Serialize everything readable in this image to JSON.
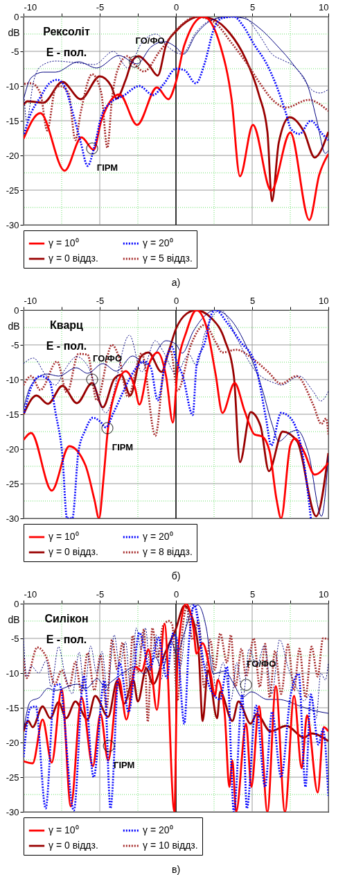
{
  "chart_data": [
    {
      "type": "line",
      "title": "а)",
      "ylabel": "dB",
      "xlim": [
        -10,
        10
      ],
      "ylim": [
        -30,
        0
      ],
      "xticks": [
        -10,
        {
          "value": -7.5,
          "label": null
        },
        -5,
        {
          "value": -2.5,
          "label": null
        },
        0,
        {
          "value": 2.5,
          "label": null
        },
        5,
        {
          "value": 7.5,
          "label": null
        },
        10
      ],
      "yticks": [
        0,
        {
          "value": -2.5,
          "label": null
        },
        -5,
        {
          "value": -7.5,
          "label": null
        },
        -10,
        {
          "value": -12.5,
          "label": null
        },
        -15,
        {
          "value": -17.5,
          "label": null
        },
        -20,
        {
          "value": -22.5,
          "label": null
        },
        -25,
        {
          "value": -27.5,
          "label": null
        },
        -30
      ],
      "grid": true,
      "legend": "bottom",
      "ref_lines": [
        {
          "axis": "x",
          "value": 0,
          "color": "#000000"
        }
      ],
      "annotations": [
        "Рексоліт",
        "E - пол.",
        {
          "text": "ГО/ФО",
          "x": -2.7,
          "y": -6.5
        },
        {
          "text": "ГІРМ",
          "x": -5.5,
          "y": -19
        }
      ],
      "series": [
        {
          "name": "γ = 10⁰",
          "color": "#ff0000",
          "line_style": "solid",
          "x": [
            -10,
            -8.9,
            -7.3,
            -6.2,
            -5.4,
            -4.9,
            -3.7,
            -2.55,
            -1.25,
            -0.5,
            0,
            0.55,
            1.8,
            2.9,
            3.65,
            4.2,
            5.05,
            6.25,
            7.5,
            8.75,
            9.4,
            10
          ],
          "values": [
            -17.6,
            -13.9,
            -22.2,
            -17.4,
            -19.2,
            -15,
            -11.2,
            -15.6,
            -10.2,
            -11.9,
            -9.4,
            -4.1,
            0,
            -4.1,
            -11.9,
            -23,
            -15.6,
            -25.1,
            -16.7,
            -29.3,
            -22.8,
            -19.8
          ]
        },
        {
          "name": "γ = 20⁰",
          "color": "#0000ff",
          "line_style": "dotted",
          "x": [
            -9.95,
            -9.65,
            -8.9,
            -8.3,
            -7.8,
            -7.4,
            -6.7,
            -6.25,
            -5.8,
            -5.35,
            -4.9,
            -4.35,
            -3.45,
            -2.4,
            -1.5,
            -0.8,
            0,
            0.55,
            1.3,
            1.9,
            2.45,
            3.05,
            3.8,
            4.4,
            5.15,
            5.9,
            6.6,
            7.2,
            7.55,
            8.1,
            8.85,
            9.6,
            10
          ],
          "values": [
            -16.9,
            -14.7,
            -11.6,
            -9.6,
            -9.1,
            -9.7,
            -14.4,
            -18.1,
            -21.5,
            -18.7,
            -14.4,
            -12.5,
            -11.4,
            -10,
            -11.3,
            -9.7,
            -7.5,
            -7.7,
            -9.6,
            -6.6,
            -2,
            -0.2,
            0,
            -1.3,
            -4.1,
            -6.6,
            -10,
            -13.8,
            -16.2,
            -16.9,
            -15,
            -16.9,
            -17.8
          ]
        },
        {
          "name": "γ = 0 віддз.",
          "color": "#990000",
          "line_style": "solid",
          "x": [
            -10,
            -9.75,
            -8.7,
            -7.45,
            -6.25,
            -5,
            -4.25,
            -3.9,
            -3.3,
            -2.85,
            -2.45,
            -1.8,
            -1.2,
            -0.65,
            0,
            0.7,
            1.45,
            2.45,
            3.5,
            4.55,
            5.45,
            6,
            6.3,
            6.75,
            7.45,
            8.4,
            9.1,
            10
          ],
          "values": [
            -12.7,
            -12.2,
            -12.4,
            -9.4,
            -11.9,
            -8.6,
            -10,
            -11.8,
            -9.1,
            -6.3,
            -5.7,
            -6.9,
            -8.5,
            -4.1,
            -2.1,
            -0.7,
            0,
            -0.4,
            -2.3,
            -6,
            -11.3,
            -16.6,
            -26.6,
            -18.1,
            -14.5,
            -16.6,
            -20.3,
            -16.6
          ]
        },
        {
          "name": "γ = 5 віддз.",
          "color": "#a52a2a",
          "line_style": "dotted",
          "x": [
            -9.95,
            -9.5,
            -8.9,
            -8.45,
            -7.9,
            -7.6,
            -7.05,
            -6.6,
            -6.25,
            -5.5,
            -4.9,
            -4.5,
            -4.2,
            -3.75,
            -3.2,
            -2.7,
            -2.1,
            -1.1,
            0,
            1,
            1.3,
            2.45,
            3.65,
            4.7,
            5.45,
            6.3,
            7.2,
            8.7,
            10
          ],
          "values": [
            -9.7,
            -9.6,
            -11,
            -16.4,
            -10.3,
            -10,
            -11,
            -17.8,
            -13.8,
            -8.3,
            -11,
            -18.9,
            -11.9,
            -7.2,
            -5.7,
            -6.9,
            -7.9,
            -5.1,
            -2,
            -0.2,
            0,
            -0.7,
            -3.8,
            -6.9,
            -9.4,
            -11.9,
            -13.1,
            -12,
            -13.6
          ]
        },
        {
          "color": "#000080",
          "line_style": "solid",
          "x": [
            -10,
            -9.5,
            -8.7,
            -7.9,
            -6.4,
            -5.2,
            -3.75,
            -2.55,
            -1.65,
            -0.8,
            0,
            0.5,
            1.3,
            2.45,
            3.35,
            4.4,
            5.45,
            6.6,
            7.8,
            8.7,
            9.25,
            9.8,
            10
          ],
          "values": [
            -11.9,
            -8.8,
            -8,
            -8,
            -6.5,
            -7.4,
            -5.6,
            -6.8,
            -4.4,
            -3.6,
            -4.4,
            -5.4,
            -2.6,
            -0.4,
            0,
            -0.2,
            -1.6,
            -4.1,
            -7.2,
            -10.3,
            -15,
            -19.7,
            -19.3
          ]
        },
        {
          "color": "#000080",
          "line_style": "dotted",
          "x": [
            -9.95,
            -9.8,
            -9.35,
            -8.9,
            -7.9,
            -6.7,
            -5.35,
            -4.1,
            -3.15,
            -2.25,
            -1.3,
            -0.5,
            0.4,
            1.3,
            2.45,
            4.4,
            5.45,
            6.3,
            7.05,
            7.8,
            9,
            9.45,
            10
          ],
          "values": [
            -11.9,
            -15,
            -9.4,
            -7.2,
            -6.4,
            -6.6,
            -6.9,
            -5,
            -7.4,
            -3.8,
            -2.5,
            -4.4,
            -5.4,
            -2.3,
            -0.4,
            0,
            -2.6,
            -5.4,
            -6.3,
            -7.2,
            -10.7,
            -11,
            -10.5
          ]
        }
      ]
    },
    {
      "type": "line",
      "title": "б)",
      "ylabel": "dB",
      "xlim": [
        -10,
        10
      ],
      "ylim": [
        -30,
        0
      ],
      "xticks": [
        -10,
        {
          "value": -7.5,
          "label": null
        },
        -5,
        {
          "value": -2.5,
          "label": null
        },
        0,
        {
          "value": 2.5,
          "label": null
        },
        5,
        {
          "value": 7.5,
          "label": null
        },
        10
      ],
      "yticks": [
        0,
        {
          "value": -2.5,
          "label": null
        },
        -5,
        {
          "value": -7.5,
          "label": null
        },
        -10,
        {
          "value": -12.5,
          "label": null
        },
        -15,
        {
          "value": -17.5,
          "label": null
        },
        -20,
        {
          "value": -22.5,
          "label": null
        },
        -25,
        {
          "value": -27.5,
          "label": null
        },
        -30
      ],
      "grid": true,
      "legend": "bottom",
      "ref_lines": [
        {
          "axis": "x",
          "value": 0,
          "color": "#000000"
        }
      ],
      "annotations": [
        "Кварц",
        "E - пол.",
        {
          "text": "ГО/ФО",
          "x": -5.5,
          "y": -10
        },
        {
          "text": "ГІРМ",
          "x": -4.5,
          "y": -17
        }
      ],
      "series": [
        {
          "name": "γ = 10⁰",
          "color": "#ff0000",
          "line_style": "solid",
          "x": [
            -10,
            -9.5,
            -8.15,
            -7,
            -5.95,
            -5.35,
            -5.05,
            -4.75,
            -4.5,
            -3.9,
            -3.3,
            -2.7,
            -2.4,
            -1.8,
            -1.2,
            -0.65,
            -0.2,
            0.1,
            0.7,
            1.35,
            2,
            2.6,
            3.05,
            3.85,
            4.5,
            5.15,
            5.65,
            6.15,
            6.6,
            6.9,
            7.5,
            7.8,
            8.4,
            9.1,
            10
          ],
          "values": [
            -18.7,
            -17.7,
            -26,
            -19.6,
            -22.3,
            -27.3,
            -30,
            -24.2,
            -17.9,
            -11.1,
            -8.8,
            -11.1,
            -13.6,
            -8,
            -6.1,
            -9.5,
            -16.2,
            -8.6,
            -3,
            0,
            -2.4,
            -9.2,
            -14.8,
            -10.5,
            -14.5,
            -17.9,
            -18.2,
            -20.4,
            -27.3,
            -30,
            -19.5,
            -18.5,
            -20.4,
            -23.7,
            -22
          ]
        },
        {
          "name": "γ = 20⁰",
          "color": "#0000ff",
          "line_style": "dotted",
          "x": [
            -9.95,
            -9.5,
            -8.9,
            -8.3,
            -7.9,
            -7.45,
            -7.15,
            -6.8,
            -6.4,
            -5.95,
            -5.45,
            -4.95,
            -4.6,
            -4.1,
            -3.45,
            -2.7,
            -2.1,
            -1.65,
            -1.2,
            -0.65,
            -0.25,
            0,
            0.45,
            1.1,
            1.35,
            1.9,
            2.35,
            2.6,
            3.35,
            4.25,
            5.15,
            5.9,
            6.25,
            6.9,
            7.5,
            8.4,
            8.85
          ],
          "values": [
            -14.8,
            -11.1,
            -9.5,
            -10.2,
            -14.8,
            -21,
            -30,
            -30,
            -20.4,
            -17.3,
            -15.5,
            -16.1,
            -16.9,
            -14.8,
            -11.7,
            -8.6,
            -7.4,
            -8.3,
            -13,
            -7.1,
            -5.3,
            -7.1,
            -9.5,
            -15.1,
            -8,
            -4.6,
            -0.5,
            0,
            -1.8,
            -4.6,
            -7.4,
            -15.5,
            -19.5,
            -14.8,
            -15.5,
            -22,
            -30
          ]
        },
        {
          "name": "γ = 0 віддз.",
          "color": "#990000",
          "line_style": "solid",
          "x": [
            -10,
            -9.15,
            -8.4,
            -7.45,
            -6.5,
            -5.5,
            -4.8,
            -4.05,
            -3.6,
            -3,
            -2.3,
            -1.8,
            -0.95,
            -0.5,
            0,
            0.7,
            1.3,
            2.35,
            3.2,
            3.8,
            4.2,
            4.9,
            5.55,
            6.1,
            7,
            7.95,
            9.2,
            10
          ],
          "values": [
            -15,
            -12.3,
            -13.5,
            -10.9,
            -13.4,
            -10.5,
            -14,
            -9.9,
            -9.3,
            -12.3,
            -6.7,
            -6.1,
            -8.9,
            -6.1,
            -2.7,
            -0.5,
            0,
            -1.2,
            -4.3,
            -9.5,
            -21.9,
            -14.7,
            -16.7,
            -23.2,
            -17.5,
            -18.9,
            -29.7,
            -20.6
          ]
        },
        {
          "name": "γ = 8 віддз.",
          "color": "#a52a2a",
          "line_style": "dotted",
          "x": [
            -10,
            -9.5,
            -8.9,
            -7.8,
            -7.15,
            -6.4,
            -5.8,
            -5.2,
            -4.2,
            -3.75,
            -3.15,
            -2.25,
            -1.35,
            -0.8,
            -0.35,
            0.1,
            1,
            1.9,
            2.6,
            3.05,
            3.95,
            5.15,
            6.05,
            6.9,
            7.9,
            9,
            9.55,
            9.85,
            10
          ],
          "values": [
            -10.8,
            -9.5,
            -11.5,
            -7.4,
            -11.9,
            -6.3,
            -6.4,
            -13,
            -5,
            -6.7,
            -12.5,
            -6.2,
            -18.1,
            -8.6,
            -5.8,
            -11.6,
            -4.9,
            -2.1,
            -4.6,
            -6.1,
            -5.7,
            -7.2,
            -8.9,
            -10.6,
            -9.5,
            -13.6,
            -16.4,
            -15.6,
            -17.9
          ]
        },
        {
          "color": "#000080",
          "line_style": "solid",
          "x": [
            -10,
            -9.5,
            -8.45,
            -7.7,
            -6.55,
            -5.8,
            -4.8,
            -3.9,
            -2.85,
            -1.95,
            -0.65,
            0,
            0.4,
            1.15,
            1.9,
            2.55,
            3.65,
            4.85,
            5.7,
            6.3,
            6.75,
            7.5,
            7.95,
            8.7,
            9.55,
            10
          ],
          "values": [
            -14.2,
            -10.8,
            -9.2,
            -9.5,
            -8.3,
            -9.1,
            -7.7,
            -8.8,
            -6.6,
            -7.8,
            -4.4,
            -4.9,
            -6.2,
            -3,
            -0.8,
            0,
            -1.5,
            -6.4,
            -11.7,
            -16.4,
            -18.9,
            -17.6,
            -17.3,
            -20.7,
            -29.7,
            -21
          ]
        },
        {
          "color": "#000080",
          "line_style": "dotted",
          "x": [
            -10,
            -9.35,
            -8.6,
            -7.9,
            -7.3,
            -6.5,
            -5.8,
            -4.6,
            -3.05,
            -2.25,
            -1.35,
            -0.8,
            0,
            0.85,
            1.35,
            1.9,
            2.95,
            3.95,
            5.15,
            6.6,
            6.9,
            8.1,
            9,
            9.5,
            10
          ],
          "values": [
            -7.7,
            -6.9,
            -9.2,
            -10.8,
            -8.6,
            -6.7,
            -8,
            -14.8,
            -3.6,
            -8.9,
            -4.4,
            -6.1,
            -9.2,
            -6.4,
            -8,
            -3.3,
            0,
            -3.9,
            -8.6,
            -10.6,
            -10.8,
            -9.5,
            -11.7,
            -13.1,
            -11.7
          ]
        }
      ]
    },
    {
      "type": "line",
      "title": "в)",
      "ylabel": "dB",
      "xlim": [
        -10,
        10
      ],
      "ylim": [
        -30,
        0
      ],
      "xticks": [
        -10,
        {
          "value": -7.5,
          "label": null
        },
        -5,
        {
          "value": -2.5,
          "label": null
        },
        0,
        {
          "value": 2.5,
          "label": null
        },
        5,
        {
          "value": 7.5,
          "label": null
        },
        10
      ],
      "yticks": [
        0,
        {
          "value": -2.5,
          "label": null
        },
        -5,
        {
          "value": -7.5,
          "label": null
        },
        -10,
        {
          "value": -12.5,
          "label": null
        },
        -15,
        {
          "value": -17.5,
          "label": null
        },
        -20,
        {
          "value": -22.5,
          "label": null
        },
        -25,
        {
          "value": -27.5,
          "label": null
        },
        -30
      ],
      "grid": true,
      "legend": "bottom",
      "ref_lines": [
        {
          "axis": "x",
          "value": 0,
          "color": "#000000"
        }
      ],
      "annotations": [
        "Силікон",
        "E - пол.",
        {
          "text": "ГО/ФО",
          "x": 4.6,
          "y": -11.7
        },
        {
          "text": "ГІРМ",
          "x": -4.4,
          "y": -20.5
        }
      ],
      "series": [
        {
          "name": "γ = 10⁰",
          "color": "#ff0000",
          "line_style": "solid",
          "x": [
            -10,
            -9.4,
            -8.75,
            -8.15,
            -7.5,
            -6.9,
            -6.2,
            -5.45,
            -4.95,
            -4.45,
            -3.75,
            -3.25,
            -2.65,
            -2.25,
            -1.8,
            -1.25,
            -0.75,
            -0.1,
            0.1,
            0.65,
            1.15,
            1.35,
            1.75,
            2.3,
            2.55,
            2.75,
            3.2,
            3.5,
            3.7,
            3.95,
            4.6,
            4.95,
            5.45,
            6,
            6.55,
            7.15,
            7.75,
            8.25,
            8.6,
            9.3,
            9.7,
            10
          ],
          "values": [
            -22.7,
            -23,
            -16.7,
            -22.9,
            -12.4,
            -29.2,
            -13.5,
            -23.4,
            -15.9,
            -22.6,
            -10.8,
            -16.7,
            -9.1,
            -9.7,
            -6.6,
            -15.3,
            -2.9,
            -30,
            -7.9,
            0,
            -3.6,
            -7.2,
            -5.7,
            -10.4,
            -13.3,
            -11,
            -15.9,
            -26.4,
            -22.6,
            -30,
            -17.3,
            -26.4,
            -14.8,
            -30,
            -11.9,
            -30,
            -13.3,
            -23.7,
            -16.1,
            -27.2,
            -17.8,
            -18.4
          ]
        },
        {
          "name": "γ = 20⁰",
          "color": "#0000ff",
          "line_style": "dotted",
          "x": [
            -10,
            -9.55,
            -9.2,
            -8.55,
            -7.95,
            -7.65,
            -6.7,
            -6.05,
            -5.4,
            -4.7,
            -4.3,
            -3.7,
            -3.1,
            -2.4,
            -1.7,
            -1.15,
            -0.6,
            -0.2,
            0.05,
            0.55,
            0.85,
            1.2,
            1.75,
            2.3,
            2.9,
            3.35,
            3.8,
            4.35,
            4.65,
            5.25,
            5.85,
            6.3,
            6.9,
            7.5,
            8.05,
            8.5,
            8.85,
            9.35,
            9.65,
            10
          ],
          "values": [
            -22.1,
            -15,
            -14.8,
            -29.5,
            -11.9,
            -11.6,
            -29.8,
            -10.4,
            -25,
            -11.1,
            -29.5,
            -8.5,
            -15.6,
            -4.2,
            -9.4,
            -4.9,
            -10.7,
            -4.3,
            -5.1,
            -17.3,
            -5.7,
            -0.2,
            -7.9,
            -12.5,
            -13.8,
            -9.1,
            -30,
            -13.1,
            -29.5,
            -14.7,
            -26.4,
            -15.6,
            -25,
            -13.5,
            -10.1,
            -26.4,
            -13.1,
            -20.3,
            -18.1,
            -27.7
          ]
        },
        {
          "name": "γ = 0 віддз.",
          "color": "#990000",
          "line_style": "solid",
          "x": [
            -10,
            -9.7,
            -9.4,
            -8.75,
            -8.25,
            -7.7,
            -7.2,
            -6.6,
            -5.8,
            -5.3,
            -4.45,
            -3.85,
            -3.4,
            -2.8,
            -2.5,
            -1.95,
            -1.5,
            -0.75,
            0,
            0.55,
            1.15,
            1.5,
            1.75,
            2.1,
            2.7,
            2.9,
            3.7,
            4.1,
            4.9,
            5.3,
            6.2,
            7.25,
            8.4,
            8.9,
            10
          ],
          "values": [
            -18.4,
            -16.9,
            -17.8,
            -14.8,
            -16.5,
            -14.2,
            -16.5,
            -14.1,
            -16.7,
            -13.3,
            -16.3,
            -11.1,
            -14.4,
            -11,
            -14.1,
            -9.3,
            -11.6,
            -7.3,
            -3.6,
            -0.3,
            -2.6,
            -7.3,
            -16.9,
            -9.6,
            -16.5,
            -12.7,
            -16.9,
            -14.1,
            -17.3,
            -15.9,
            -18.4,
            -17.6,
            -19.3,
            -18.7,
            -19.8
          ]
        },
        {
          "name": "γ = 10 віддз.",
          "color": "#a52a2a",
          "line_style": "dotted",
          "x": [
            -10,
            -9.8,
            -9.1,
            -8.45,
            -7.95,
            -7.5,
            -7,
            -6.6,
            -6.2,
            -5.8,
            -5.35,
            -4.95,
            -4.55,
            -4.2,
            -3.85,
            -3.5,
            -3.1,
            -2.85,
            -2.5,
            -2.1,
            -1.85,
            -1.55,
            -1.2,
            -0.85,
            -0.45,
            -0.25,
            0.1,
            0.4,
            0.7,
            1.1,
            1.45,
            1.85,
            2.25,
            2.55,
            2.9,
            3.35,
            3.6,
            3.9,
            4.3,
            4.6,
            5.1,
            5.5,
            5.85,
            6.15,
            6.5,
            6.9,
            7.35,
            7.75,
            8.1,
            8.5,
            8.9,
            9.3,
            9.65,
            10
          ],
          "values": [
            -7.9,
            -10.7,
            -6.3,
            -8,
            -11.6,
            -9.6,
            -12,
            -8.4,
            -12.8,
            -7.1,
            -12.5,
            -7.4,
            -15,
            -5.2,
            -9.5,
            -5.6,
            -13.7,
            -4.6,
            -9.8,
            -3.7,
            -17,
            -3.5,
            -7.8,
            -3.2,
            -2.5,
            -3,
            -14,
            -4.3,
            -0.5,
            -5.2,
            -2.6,
            -12,
            -5.2,
            -9.5,
            -4.3,
            -8.5,
            -4.5,
            -12,
            -6.5,
            -10.5,
            -5,
            -12,
            -5.8,
            -13.5,
            -6.8,
            -13,
            -5.9,
            -12.5,
            -6.5,
            -13.5,
            -6.2,
            -10.5,
            -5,
            -5.1
          ]
        },
        {
          "color": "#000080",
          "line_style": "solid",
          "x": [
            -10,
            -9.55,
            -8.95,
            -8.4,
            -7.95,
            -6.5,
            -5.9,
            -5.15,
            -4.7,
            -4.15,
            -3.55,
            -2.65,
            -2.1,
            -1.35,
            -0.9,
            -0.3,
            0.05,
            0.55,
            1.15,
            1.45,
            2,
            2.45,
            3.2,
            3.8,
            4.35,
            4.95,
            6,
            6.7,
            8.2,
            8.9,
            10
          ],
          "values": [
            -18.2,
            -14.1,
            -13.5,
            -12.2,
            -12.5,
            -11.6,
            -12.2,
            -10.8,
            -11.9,
            -11.1,
            -10.1,
            -9.1,
            -10.1,
            -7.7,
            -9.4,
            -5.5,
            -7.3,
            -4.2,
            -0.5,
            -0.2,
            -3.6,
            -10.1,
            -9.7,
            -11.6,
            -13.5,
            -12.7,
            -13.8,
            -13.8,
            -14.8,
            -15.3,
            -15.8
          ]
        },
        {
          "color": "#000080",
          "line_style": "dotted",
          "x": [
            -10,
            -9.8,
            -9.5,
            -9,
            -8.5,
            -8.2,
            -7.7,
            -7.3,
            -6.8,
            -6.35,
            -6,
            -5.6,
            -5.2,
            -4.85,
            -4.5,
            -4.05,
            -3.7,
            -3.3,
            -3,
            -2.6,
            -2.3,
            -2,
            -1.7,
            -1.3,
            -1,
            -0.6,
            -0.15,
            0.3,
            0.6,
            0.9,
            1.2,
            1.55,
            1.9,
            2.3,
            2.6,
            3.1,
            3.6,
            4,
            4.4,
            4.8,
            5.3,
            5.8,
            6.3,
            6.8,
            7.4,
            7.9,
            8.4,
            8.8,
            9.2,
            9.5,
            9.8,
            10
          ],
          "values": [
            -5,
            -10.5,
            -9,
            -10,
            -8.2,
            -12,
            -6.2,
            -10,
            -13,
            -7,
            -12.5,
            -6.1,
            -10,
            -6.9,
            -12.5,
            -4.5,
            -9,
            -5.5,
            -12,
            -3.5,
            -6.5,
            -3.5,
            -9,
            -4.5,
            -11,
            -7,
            -4.5,
            -9,
            -4,
            -0.5,
            0,
            -3,
            -9,
            -7.5,
            -12,
            -8.5,
            -14,
            -8.5,
            -13.5,
            -6.5,
            -9,
            -6,
            -13,
            -5.2,
            -9.5,
            -12,
            -14,
            -13,
            -16.5,
            -10,
            -11,
            -8.5
          ]
        }
      ]
    }
  ]
}
